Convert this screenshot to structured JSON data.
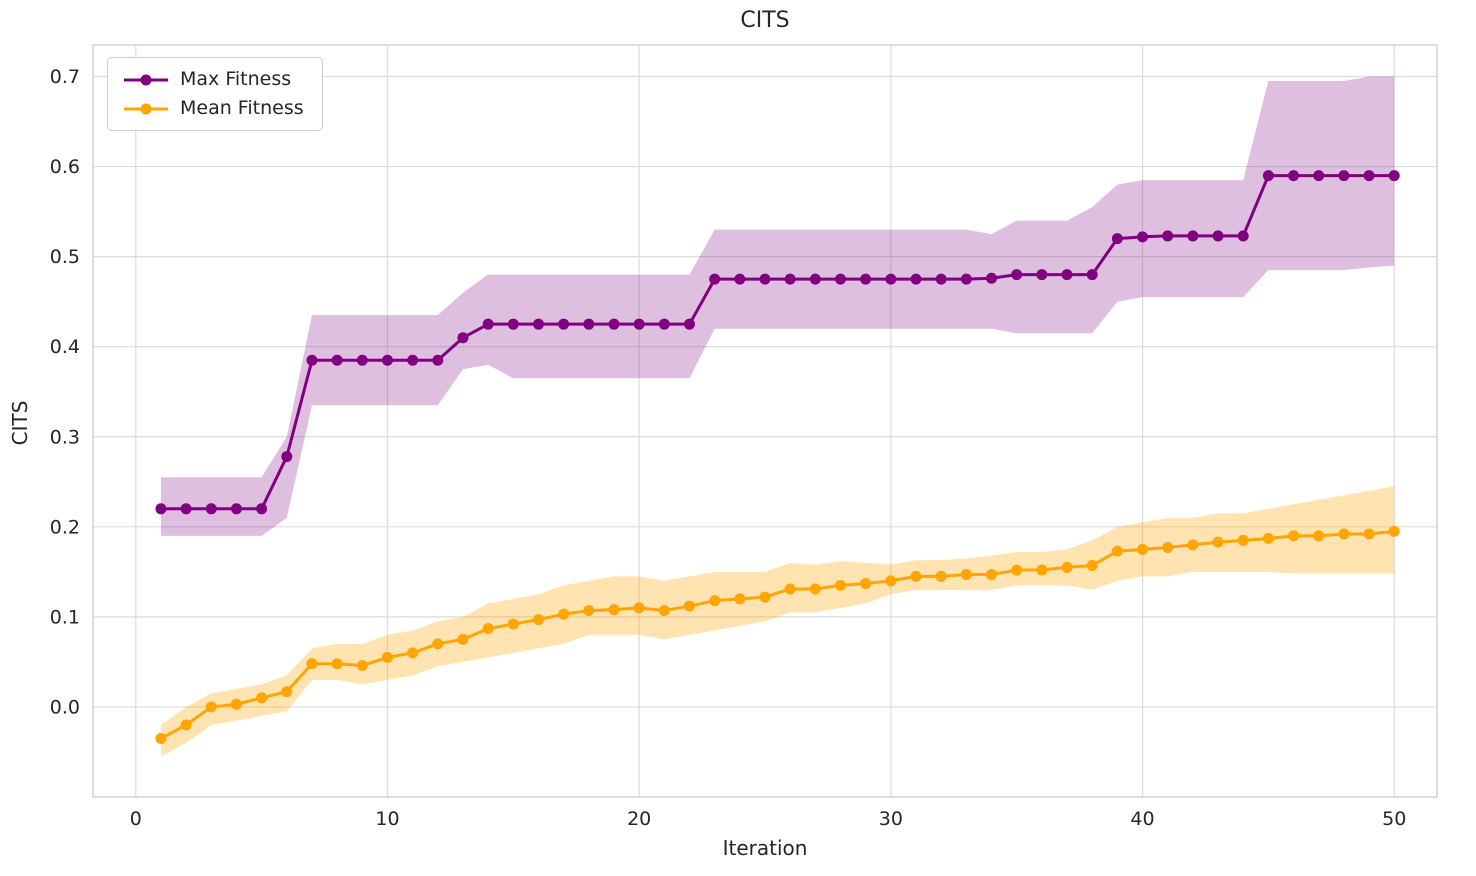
{
  "chart_data": {
    "type": "line",
    "title": "CITS",
    "xlabel": "Iteration",
    "ylabel": "CITS",
    "xlim": [
      -1.7,
      51.7
    ],
    "ylim": [
      -0.1,
      0.735
    ],
    "xticks": [
      0,
      10,
      20,
      30,
      40,
      50
    ],
    "xtick_labels": [
      "0",
      "10",
      "20",
      "30",
      "40",
      "50"
    ],
    "yticks": [
      0.0,
      0.1,
      0.2,
      0.3,
      0.4,
      0.5,
      0.6,
      0.7
    ],
    "ytick_labels": [
      "0.0",
      "0.1",
      "0.2",
      "0.3",
      "0.4",
      "0.5",
      "0.6",
      "0.7"
    ],
    "grid": true,
    "legend_position": "upper left",
    "grid_color": "#dcdcdc",
    "border_color": "#cfcfcf",
    "text_color": "#262626",
    "x": [
      1,
      2,
      3,
      4,
      5,
      6,
      7,
      8,
      9,
      10,
      11,
      12,
      13,
      14,
      15,
      16,
      17,
      18,
      19,
      20,
      21,
      22,
      23,
      24,
      25,
      26,
      27,
      28,
      29,
      30,
      31,
      32,
      33,
      34,
      35,
      36,
      37,
      38,
      39,
      40,
      41,
      42,
      43,
      44,
      45,
      46,
      47,
      48,
      49,
      50
    ],
    "series": [
      {
        "name": "Max Fitness",
        "color": "#800080",
        "band_opacity": 0.25,
        "values": [
          0.22,
          0.22,
          0.22,
          0.22,
          0.22,
          0.278,
          0.385,
          0.385,
          0.385,
          0.385,
          0.385,
          0.385,
          0.41,
          0.425,
          0.425,
          0.425,
          0.425,
          0.425,
          0.425,
          0.425,
          0.425,
          0.425,
          0.475,
          0.475,
          0.475,
          0.475,
          0.475,
          0.475,
          0.475,
          0.475,
          0.475,
          0.475,
          0.475,
          0.476,
          0.48,
          0.48,
          0.48,
          0.48,
          0.52,
          0.522,
          0.523,
          0.523,
          0.523,
          0.523,
          0.59,
          0.59,
          0.59,
          0.59,
          0.59,
          0.59
        ],
        "band_lower": [
          0.19,
          0.19,
          0.19,
          0.19,
          0.19,
          0.21,
          0.335,
          0.335,
          0.335,
          0.335,
          0.335,
          0.335,
          0.375,
          0.38,
          0.365,
          0.365,
          0.365,
          0.365,
          0.365,
          0.365,
          0.365,
          0.365,
          0.42,
          0.42,
          0.42,
          0.42,
          0.42,
          0.42,
          0.42,
          0.42,
          0.42,
          0.42,
          0.42,
          0.42,
          0.415,
          0.415,
          0.415,
          0.415,
          0.45,
          0.455,
          0.455,
          0.455,
          0.455,
          0.455,
          0.485,
          0.485,
          0.485,
          0.485,
          0.488,
          0.49
        ],
        "band_upper": [
          0.255,
          0.255,
          0.255,
          0.255,
          0.255,
          0.3,
          0.435,
          0.435,
          0.435,
          0.435,
          0.435,
          0.435,
          0.46,
          0.48,
          0.48,
          0.48,
          0.48,
          0.48,
          0.48,
          0.48,
          0.48,
          0.48,
          0.53,
          0.53,
          0.53,
          0.53,
          0.53,
          0.53,
          0.53,
          0.53,
          0.53,
          0.53,
          0.53,
          0.525,
          0.54,
          0.54,
          0.54,
          0.555,
          0.58,
          0.585,
          0.585,
          0.585,
          0.585,
          0.585,
          0.695,
          0.695,
          0.695,
          0.695,
          0.7,
          0.7
        ]
      },
      {
        "name": "Mean Fitness",
        "color": "#FFA500",
        "band_opacity": 0.3,
        "values": [
          -0.035,
          -0.02,
          0.0,
          0.003,
          0.01,
          0.017,
          0.048,
          0.048,
          0.046,
          0.055,
          0.06,
          0.07,
          0.075,
          0.087,
          0.092,
          0.097,
          0.103,
          0.107,
          0.108,
          0.11,
          0.107,
          0.112,
          0.118,
          0.12,
          0.122,
          0.131,
          0.131,
          0.135,
          0.137,
          0.14,
          0.145,
          0.145,
          0.147,
          0.147,
          0.152,
          0.152,
          0.155,
          0.157,
          0.173,
          0.175,
          0.177,
          0.18,
          0.183,
          0.185,
          0.187,
          0.19,
          0.19,
          0.192,
          0.192,
          0.195
        ],
        "band_lower": [
          -0.055,
          -0.04,
          -0.02,
          -0.015,
          -0.01,
          -0.005,
          0.03,
          0.03,
          0.025,
          0.03,
          0.035,
          0.045,
          0.05,
          0.055,
          0.06,
          0.065,
          0.07,
          0.08,
          0.08,
          0.08,
          0.075,
          0.08,
          0.085,
          0.09,
          0.095,
          0.105,
          0.105,
          0.11,
          0.115,
          0.125,
          0.13,
          0.13,
          0.13,
          0.13,
          0.135,
          0.135,
          0.135,
          0.13,
          0.14,
          0.145,
          0.145,
          0.15,
          0.15,
          0.15,
          0.15,
          0.148,
          0.148,
          0.148,
          0.148,
          0.148
        ],
        "band_upper": [
          -0.02,
          0.0,
          0.015,
          0.02,
          0.025,
          0.035,
          0.065,
          0.07,
          0.07,
          0.08,
          0.085,
          0.095,
          0.1,
          0.115,
          0.12,
          0.125,
          0.135,
          0.14,
          0.145,
          0.145,
          0.14,
          0.145,
          0.15,
          0.15,
          0.15,
          0.16,
          0.158,
          0.162,
          0.16,
          0.158,
          0.163,
          0.163,
          0.165,
          0.168,
          0.172,
          0.172,
          0.175,
          0.185,
          0.2,
          0.205,
          0.21,
          0.21,
          0.215,
          0.215,
          0.22,
          0.225,
          0.23,
          0.235,
          0.24,
          0.245
        ]
      }
    ]
  }
}
